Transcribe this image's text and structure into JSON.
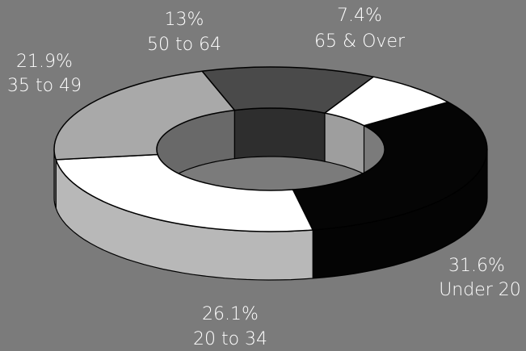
{
  "chart_data": {
    "type": "pie",
    "variant": "3d-donut",
    "title": "",
    "categories": [
      "Under 20",
      "20 to 34",
      "35 to 49",
      "50 to 64",
      "65 & Over"
    ],
    "values": [
      31.6,
      26.1,
      21.9,
      13,
      7.4
    ],
    "value_labels": [
      "31.6%",
      "26.1%",
      "21.9%",
      "13%",
      "7.4%"
    ],
    "colors": [
      "#050505",
      "#ffffff",
      "#a9a9a9",
      "#4a4a4a",
      "#ffffff"
    ],
    "legend": "none"
  },
  "colors": {
    "background": "#7b7b7b",
    "label": "#ffffff",
    "outline": "#000000"
  }
}
